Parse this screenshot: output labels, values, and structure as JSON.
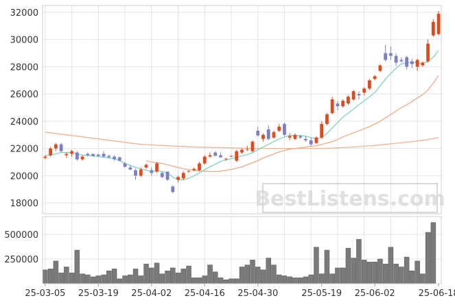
{
  "watermark": "BestListens.com",
  "colors": {
    "up": "#e04a1f",
    "down": "#7b80c4",
    "ma_short": "#7fd3c0",
    "ma_mid": "#f0a887",
    "ma_long": "#efb297",
    "volume": "#7a7a7a",
    "grid": "#e4e4e4",
    "axis": "#cfcfcf",
    "watermark": "#d8d8d8"
  },
  "chart_data": [
    {
      "type": "candlestick",
      "title": "",
      "xlabel": "",
      "ylabel": "",
      "ylim": [
        17200,
        32500
      ],
      "yticks": [
        18000,
        20000,
        22000,
        24000,
        26000,
        28000,
        30000,
        32000
      ],
      "grid": true,
      "x": [
        "25-03-05",
        "25-03-06",
        "25-03-07",
        "25-03-10",
        "25-03-11",
        "25-03-12",
        "25-03-13",
        "25-03-14",
        "25-03-17",
        "25-03-18",
        "25-03-19",
        "25-03-20",
        "25-03-21",
        "25-03-24",
        "25-03-25",
        "25-03-26",
        "25-03-27",
        "25-03-28",
        "25-03-31",
        "25-04-01",
        "25-04-02",
        "25-04-03",
        "25-04-04",
        "25-04-07",
        "25-04-08",
        "25-04-09",
        "25-04-10",
        "25-04-11",
        "25-04-14",
        "25-04-15",
        "25-04-16",
        "25-04-17",
        "25-04-18",
        "25-04-21",
        "25-04-22",
        "25-04-23",
        "25-04-24",
        "25-04-25",
        "25-04-28",
        "25-04-29",
        "25-04-30",
        "25-05-01",
        "25-05-02",
        "25-05-06",
        "25-05-07",
        "25-05-08",
        "25-05-09",
        "25-05-12",
        "25-05-13",
        "25-05-14",
        "25-05-15",
        "25-05-16",
        "25-05-19",
        "25-05-20",
        "25-05-21",
        "25-05-22",
        "25-05-23",
        "25-05-26",
        "25-05-27",
        "25-05-28",
        "25-05-29",
        "25-05-30",
        "25-06-02",
        "25-06-03",
        "25-06-04",
        "25-06-05",
        "25-06-06",
        "25-06-09",
        "25-06-10",
        "25-06-11",
        "25-06-12",
        "25-06-13",
        "25-06-16",
        "25-06-17",
        "25-06-18"
      ],
      "ohlc": [
        [
          21300,
          21500,
          21200,
          21400
        ],
        [
          21500,
          22100,
          21400,
          22000
        ],
        [
          22000,
          22400,
          21800,
          22300
        ],
        [
          22300,
          22400,
          21700,
          21800
        ],
        [
          21500,
          21700,
          21300,
          21600
        ],
        [
          21600,
          21900,
          21400,
          21800
        ],
        [
          21700,
          21800,
          21100,
          21200
        ],
        [
          21200,
          21500,
          21100,
          21400
        ],
        [
          21600,
          21700,
          21400,
          21500
        ],
        [
          21600,
          21600,
          21400,
          21450
        ],
        [
          21550,
          21600,
          21400,
          21450
        ],
        [
          21600,
          21800,
          21350,
          21400
        ],
        [
          21450,
          21550,
          21300,
          21350
        ],
        [
          21400,
          21500,
          21100,
          21200
        ],
        [
          21350,
          21400,
          21050,
          21100
        ],
        [
          20900,
          21000,
          20600,
          20650
        ],
        [
          20600,
          20750,
          20400,
          20450
        ],
        [
          20400,
          20500,
          19700,
          20000
        ],
        [
          20000,
          20600,
          19900,
          20450
        ],
        [
          20600,
          20900,
          20500,
          20800
        ],
        [
          20400,
          20600,
          20000,
          20200
        ],
        [
          20300,
          21000,
          20200,
          20900
        ],
        [
          20200,
          20300,
          19800,
          19900
        ],
        [
          20300,
          20300,
          19600,
          19700
        ],
        [
          19200,
          19300,
          18700,
          18800
        ],
        [
          19700,
          20000,
          19500,
          19900
        ],
        [
          19800,
          20300,
          19700,
          20200
        ],
        [
          20300,
          20400,
          20200,
          20350
        ],
        [
          20400,
          20600,
          20300,
          20500
        ],
        [
          20400,
          21000,
          20300,
          20900
        ],
        [
          20900,
          21500,
          20800,
          21400
        ],
        [
          21400,
          21700,
          21300,
          21500
        ],
        [
          21700,
          21800,
          21500,
          21450
        ],
        [
          21500,
          21700,
          21300,
          21350
        ],
        [
          21200,
          21300,
          21100,
          21250
        ],
        [
          21400,
          21500,
          21350,
          21450
        ],
        [
          21100,
          21900,
          21000,
          21800
        ],
        [
          21700,
          22000,
          21600,
          21900
        ],
        [
          21900,
          22200,
          21800,
          21950
        ],
        [
          21800,
          22600,
          21700,
          22500
        ],
        [
          23300,
          23600,
          22900,
          22950
        ],
        [
          22700,
          23100,
          22500,
          23000
        ],
        [
          23400,
          23700,
          22600,
          22700
        ],
        [
          22800,
          23300,
          22700,
          23200
        ],
        [
          23300,
          23800,
          23200,
          23600
        ],
        [
          23800,
          23900,
          22900,
          23000
        ],
        [
          22800,
          23100,
          22600,
          22900
        ],
        [
          22700,
          23100,
          22600,
          23000
        ],
        [
          22900,
          23000,
          22700,
          22800
        ],
        [
          22700,
          22900,
          22500,
          22600
        ],
        [
          22600,
          22800,
          22200,
          22300
        ],
        [
          22400,
          22900,
          22300,
          22800
        ],
        [
          22800,
          24000,
          22700,
          23800
        ],
        [
          23800,
          24600,
          23700,
          24500
        ],
        [
          24600,
          25800,
          24500,
          25600
        ],
        [
          25300,
          25500,
          24800,
          25100
        ],
        [
          25100,
          25600,
          25000,
          25500
        ],
        [
          25300,
          25900,
          25200,
          25800
        ],
        [
          25600,
          26300,
          25500,
          26200
        ],
        [
          26000,
          26200,
          25600,
          25900
        ],
        [
          26100,
          26500,
          25900,
          26400
        ],
        [
          26400,
          27100,
          26300,
          27000
        ],
        [
          27100,
          27400,
          27000,
          27300
        ],
        [
          27700,
          28200,
          27600,
          28100
        ],
        [
          29000,
          29600,
          28400,
          28500
        ],
        [
          29000,
          29500,
          28500,
          28800
        ],
        [
          28800,
          29000,
          28100,
          28300
        ],
        [
          28500,
          28700,
          28300,
          28400
        ],
        [
          28700,
          28800,
          27800,
          28000
        ],
        [
          28400,
          28600,
          27900,
          28200
        ],
        [
          28000,
          28600,
          27700,
          28500
        ],
        [
          28100,
          28400,
          28000,
          28300
        ],
        [
          28400,
          30000,
          28300,
          29700
        ],
        [
          30300,
          31500,
          30200,
          31300
        ],
        [
          30400,
          32100,
          30300,
          31900
        ]
      ],
      "ma_short": [
        21500,
        21500,
        21600,
        21700,
        21700,
        21700,
        21600,
        21500,
        21500,
        21450,
        21400,
        21350,
        21300,
        21250,
        21100,
        20900,
        20750,
        20600,
        20500,
        20400,
        20300,
        20350,
        20300,
        20200,
        19900,
        19700,
        19700,
        19800,
        20000,
        20200,
        20450,
        20650,
        20850,
        21050,
        21150,
        21250,
        21350,
        21450,
        21550,
        21700,
        21900,
        22100,
        22300,
        22500,
        22700,
        22850,
        22950,
        22950,
        22950,
        22900,
        22800,
        22700,
        22800,
        23100,
        23500,
        23900,
        24300,
        24600,
        24900,
        25200,
        25500,
        25800,
        26100,
        26600,
        27100,
        27500,
        27900,
        28200,
        28300,
        28350,
        28300,
        28250,
        28400,
        28700,
        29200
      ],
      "ma_mid": [
        null,
        null,
        null,
        null,
        null,
        null,
        null,
        null,
        null,
        null,
        null,
        null,
        null,
        null,
        null,
        null,
        null,
        null,
        null,
        21100,
        21000,
        20950,
        20900,
        20800,
        20700,
        20600,
        20500,
        20450,
        20400,
        20350,
        20330,
        20300,
        20300,
        20330,
        20400,
        20450,
        20550,
        20650,
        20800,
        20950,
        21100,
        21300,
        21450,
        21600,
        21750,
        21850,
        21950,
        22000,
        22050,
        22100,
        22150,
        22200,
        22300,
        22400,
        22500,
        22650,
        22850,
        23000,
        23150,
        23300,
        23450,
        23600,
        23800,
        24000,
        24250,
        24500,
        24750,
        25000,
        25200,
        25450,
        25700,
        25950,
        26300,
        26800,
        27350
      ],
      "ma_long": [
        23200,
        23150,
        23100,
        23050,
        23000,
        22950,
        22900,
        22850,
        22800,
        22750,
        22700,
        22650,
        22600,
        22550,
        22500,
        22450,
        22400,
        22350,
        22300,
        22280,
        22260,
        22240,
        22220,
        22200,
        22180,
        22160,
        22140,
        22120,
        22110,
        22100,
        22090,
        22080,
        22070,
        22060,
        22050,
        22040,
        22030,
        22020,
        22010,
        22005,
        22000,
        22000,
        22000,
        22000,
        22000,
        22000,
        22000,
        22000,
        22000,
        22000,
        22000,
        22000,
        22000,
        22010,
        22020,
        22040,
        22060,
        22080,
        22100,
        22130,
        22160,
        22190,
        22220,
        22260,
        22300,
        22340,
        22380,
        22420,
        22460,
        22500,
        22550,
        22600,
        22650,
        22720,
        22800
      ]
    },
    {
      "type": "bar",
      "title": "",
      "xlabel": "",
      "ylabel": "",
      "ylim": [
        0,
        680000
      ],
      "yticks": [
        250000,
        500000
      ],
      "values": [
        140000,
        150000,
        230000,
        110000,
        170000,
        110000,
        340000,
        100000,
        90000,
        70000,
        80000,
        90000,
        130000,
        150000,
        50000,
        80000,
        90000,
        150000,
        80000,
        200000,
        160000,
        210000,
        100000,
        130000,
        160000,
        110000,
        150000,
        180000,
        60000,
        60000,
        80000,
        190000,
        120000,
        60000,
        40000,
        50000,
        50000,
        170000,
        190000,
        240000,
        170000,
        140000,
        260000,
        190000,
        90000,
        80000,
        70000,
        60000,
        60000,
        70000,
        90000,
        370000,
        100000,
        340000,
        100000,
        160000,
        160000,
        360000,
        260000,
        450000,
        240000,
        220000,
        220000,
        250000,
        200000,
        370000,
        200000,
        170000,
        270000,
        130000,
        230000,
        100000,
        520000,
        620000,
        0
      ],
      "volume_note": ""
    }
  ],
  "x_tick_labels": [
    "25-03-05",
    "25-03-19",
    "25-04-02",
    "25-04-16",
    "25-04-30",
    "25-05-19",
    "25-06-02",
    "25-06-18"
  ]
}
